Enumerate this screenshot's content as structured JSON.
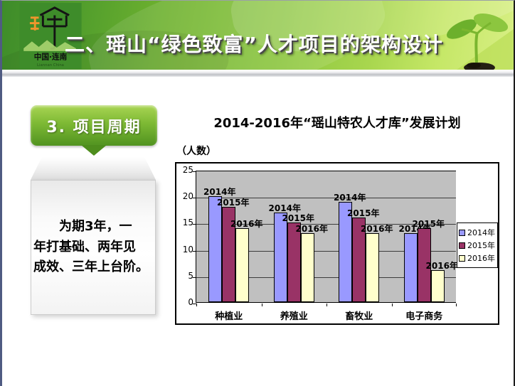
{
  "slide": {
    "header": {
      "title": "二、瑶山“绿色致富”人才项目的架构设计",
      "logo": {
        "glyph": "瑶",
        "text_cn": "中国·连南",
        "text_en": "Liannan China"
      },
      "sprout_icon": "seedling",
      "colors": {
        "banner_green": "#8cc63f",
        "banner_dark": "#3e8c2a",
        "banner_light": "#d8ef85"
      }
    },
    "section_label": "3. 项目周期",
    "body_text": "　　为期3年，一\n年打基础、两年见\n成效、三年上台阶。",
    "section_colors": {
      "label_green": "#6fae2b",
      "tail_green": "#4e8d1d"
    }
  },
  "chart_data": {
    "type": "bar",
    "title": "2014-2016年“瑶山特农人才库”发展计划",
    "unit": "（人数）",
    "xlabel": "",
    "ylabel": "人数",
    "categories": [
      "种植业",
      "养殖业",
      "畜牧业",
      "电子商务"
    ],
    "series": [
      {
        "name": "2014年",
        "color": "#9999FF",
        "values": [
          20,
          17,
          19,
          13
        ]
      },
      {
        "name": "2015年",
        "color": "#993366",
        "values": [
          18,
          15,
          16,
          14
        ]
      },
      {
        "name": "2016年",
        "color": "#FFFFCC",
        "values": [
          14,
          13,
          13,
          6
        ]
      }
    ],
    "ylim": [
      0,
      25
    ],
    "ytick_step": 5,
    "yticks": [
      0,
      5,
      10,
      15,
      20,
      25
    ],
    "grid": true,
    "plot_bg": "#C0C0C0",
    "legend_position": "right",
    "data_labels": "series-name-above-each-bar"
  }
}
